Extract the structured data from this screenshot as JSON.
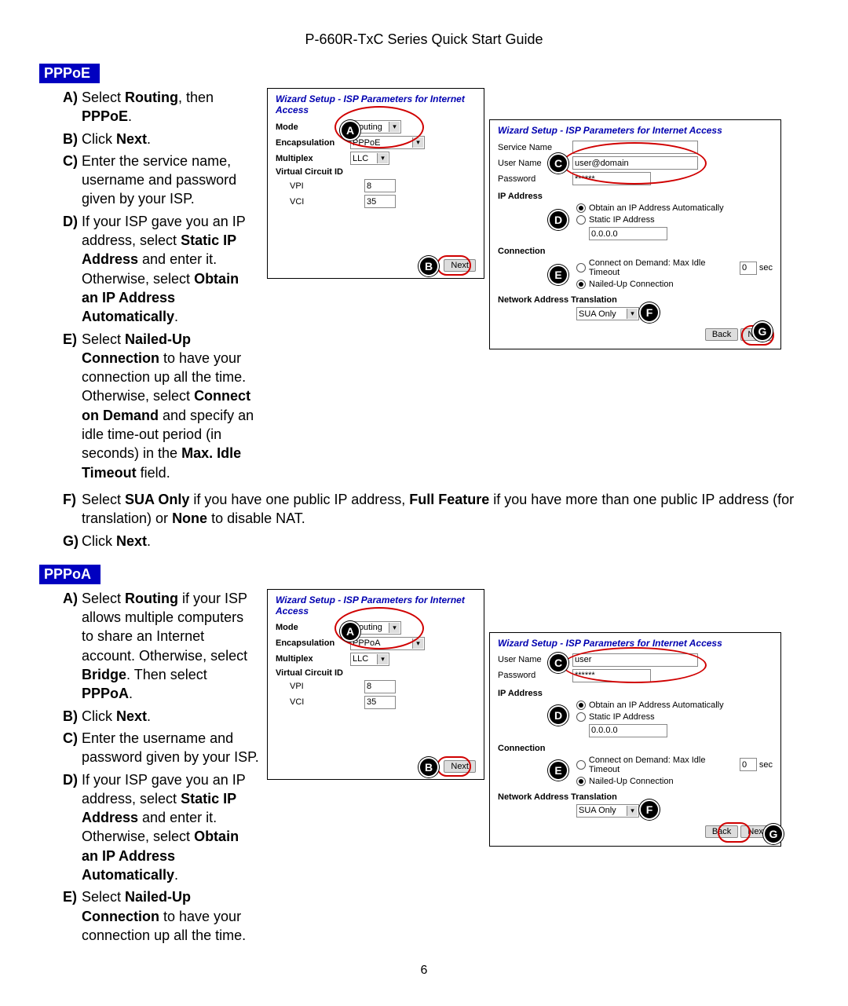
{
  "doc_header": "P-660R-TxC Series Quick Start Guide",
  "page_number": "6",
  "pppoe": {
    "header": "PPPoE",
    "steps": {
      "A": "Select <b>Routing</b>, then <b>PPPoE</b>.",
      "B": "Click <b>Next</b>.",
      "C": "Enter the service name, username and password given by your ISP.",
      "D": "If your ISP gave you an IP address, select <b>Static IP Address</b> and enter it. Otherwise, select <b>Obtain an IP Address Automatically</b>.",
      "E": "Select <b>Nailed-Up Connection</b> to have your connection up all the time. Otherwise, select <b>Connect on Demand</b> and specify an idle time-out period (in seconds) in the <b>Max. Idle Timeout</b> field.",
      "F": "Select <b>SUA Only</b> if you have one public IP address, <b>Full Feature</b> if you have more than one public IP address (for translation) or <b>None</b> to disable NAT.",
      "G": "Click <b>Next</b>."
    },
    "panel1": {
      "title": "Wizard Setup - ISP Parameters for Internet Access",
      "mode_label": "Mode",
      "mode_value": "Routing",
      "encap_label": "Encapsulation",
      "encap_value": "PPPoE",
      "multi_label": "Multiplex",
      "multi_value": "LLC",
      "vcid_label": "Virtual Circuit ID",
      "vpi_label": "VPI",
      "vpi_value": "8",
      "vci_label": "VCI",
      "vci_value": "35",
      "next_btn": "Next"
    },
    "panel2": {
      "title": "Wizard Setup - ISP Parameters for Internet Access",
      "service_label": "Service Name",
      "service_value": "",
      "user_label": "User Name",
      "user_value": "user@domain",
      "pass_label": "Password",
      "pass_value": "******",
      "ip_label": "IP Address",
      "ip_auto": "Obtain an IP Address Automatically",
      "ip_static": "Static IP Address",
      "ip_value": "0.0.0.0",
      "conn_label": "Connection",
      "conn_demand": "Connect on Demand: Max Idle Timeout",
      "idle_value": "0",
      "sec": "sec",
      "conn_nailed": "Nailed-Up Connection",
      "nat_label": "Network Address Translation",
      "nat_value": "SUA Only",
      "back_btn": "Back",
      "next_btn": "Next"
    }
  },
  "pppoa": {
    "header": "PPPoA",
    "steps": {
      "A": "Select <b>Routing</b> if your ISP allows multiple computers to share an Internet account. Otherwise, select <b>Bridge</b>. Then select <b>PPPoA</b>.",
      "B": "Click <b>Next</b>.",
      "C": "Enter the username and password given by your ISP.",
      "D": "If your ISP gave you an IP address, select <b>Static IP Address</b> and enter it. Otherwise, select <b>Obtain an IP Address Automatically</b>.",
      "E": "Select <b>Nailed-Up Connection</b> to have your connection up all the time."
    },
    "panel1": {
      "title": "Wizard Setup - ISP Parameters for Internet Access",
      "mode_label": "Mode",
      "mode_value": "Routing",
      "encap_label": "Encapsulation",
      "encap_value": "PPPoA",
      "multi_label": "Multiplex",
      "multi_value": "LLC",
      "vcid_label": "Virtual Circuit ID",
      "vpi_label": "VPI",
      "vpi_value": "8",
      "vci_label": "VCI",
      "vci_value": "35",
      "next_btn": "Next"
    },
    "panel2": {
      "title": "Wizard Setup - ISP Parameters for Internet Access",
      "user_label": "User Name",
      "user_value": "user",
      "pass_label": "Password",
      "pass_value": "******",
      "ip_label": "IP Address",
      "ip_auto": "Obtain an IP Address Automatically",
      "ip_static": "Static IP Address",
      "ip_value": "0.0.0.0",
      "conn_label": "Connection",
      "conn_demand": "Connect on Demand: Max Idle Timeout",
      "idle_value": "0",
      "sec": "sec",
      "conn_nailed": "Nailed-Up Connection",
      "nat_label": "Network Address Translation",
      "nat_value": "SUA Only",
      "back_btn": "Back",
      "next_btn": "Next"
    }
  },
  "callouts": {
    "A": "A",
    "B": "B",
    "C": "C",
    "D": "D",
    "E": "E",
    "F": "F",
    "G": "G"
  }
}
